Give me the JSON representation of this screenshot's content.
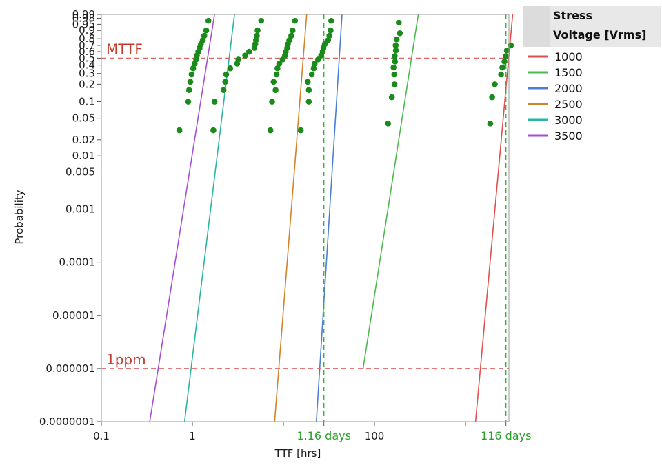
{
  "chart_data": {
    "type": "scatter",
    "title": "",
    "xlabel": "TTF [hrs]",
    "ylabel": "Probability",
    "xscale": "log",
    "yscale": "weibull-probability",
    "xlim": [
      0.1,
      3000
    ],
    "ylim": [
      1e-07,
      0.99
    ],
    "grid": false,
    "x_ticks": [
      "0.1",
      "1",
      "1.16 days",
      "100",
      "116 days"
    ],
    "x_tick_values": [
      0.1,
      1,
      27.84,
      100,
      2784
    ],
    "x_minor_ticks": [
      10,
      1000
    ],
    "y_ticks": [
      "0.0000001",
      "0.000001",
      "0.00001",
      "0.0001",
      "0.001",
      "0.005",
      "0.01",
      "0.02",
      "0.05",
      "0.1",
      "0.2",
      "0.3",
      "0.4",
      "0.5",
      "0.6",
      "0.7",
      "0.8",
      "0.9",
      "0.95",
      "0.98",
      "0.99"
    ],
    "y_tick_values": [
      1e-07,
      1e-06,
      1e-05,
      0.0001,
      0.001,
      0.005,
      0.01,
      0.02,
      0.05,
      0.1,
      0.2,
      0.3,
      0.4,
      0.5,
      0.6,
      0.7,
      0.8,
      0.9,
      0.95,
      0.98,
      0.99
    ],
    "reference_lines": [
      {
        "label": "MTTF",
        "axis": "y",
        "value": 0.5,
        "color": "#e06666",
        "style": "dashed"
      },
      {
        "label": "1ppm",
        "axis": "y",
        "value": 1e-06,
        "color": "#e06666",
        "style": "dashed"
      },
      {
        "label": "1.16 days",
        "axis": "x",
        "value": 27.84,
        "color": "#3cb043",
        "style": "dashed"
      },
      {
        "label": "116 days",
        "axis": "x",
        "value": 2784,
        "color": "#3cb043",
        "style": "dashed"
      }
    ],
    "point_color": "#1a8a1a",
    "legend": {
      "title_line1": "Stress",
      "title_line2": "Voltage [Vrms]",
      "placement": "top-right"
    },
    "series": [
      {
        "name": "1000",
        "color": "#e05050",
        "fit_line": [
          [
            1290,
            1e-07
          ],
          [
            3300,
            0.99
          ]
        ],
        "points": [
          [
            1870,
            0.04
          ],
          [
            1960,
            0.12
          ],
          [
            2100,
            0.2
          ],
          [
            2460,
            0.29
          ],
          [
            2540,
            0.37
          ],
          [
            2680,
            0.45
          ],
          [
            2760,
            0.53
          ],
          [
            2850,
            0.62
          ],
          [
            3150,
            0.7
          ]
        ]
      },
      {
        "name": "1500",
        "color": "#4db84d",
        "fit_line": [
          [
            75,
            1e-06
          ],
          [
            303,
            0.99
          ]
        ],
        "points": [
          [
            141,
            0.04
          ],
          [
            155,
            0.12
          ],
          [
            166,
            0.2
          ],
          [
            165,
            0.29
          ],
          [
            162,
            0.37
          ],
          [
            168,
            0.45
          ],
          [
            167,
            0.53
          ],
          [
            172,
            0.62
          ],
          [
            171,
            0.7
          ],
          [
            175,
            0.79
          ],
          [
            190,
            0.87
          ],
          [
            185,
            0.96
          ]
        ]
      },
      {
        "name": "2000",
        "color": "#4a7fd6",
        "fit_line": [
          [
            23,
            1e-07
          ],
          [
            44,
            0.99
          ]
        ],
        "points": [
          [
            15.5,
            0.03
          ],
          [
            19,
            0.1
          ],
          [
            19,
            0.16
          ],
          [
            18.5,
            0.22
          ],
          [
            20.5,
            0.29
          ],
          [
            21.5,
            0.36
          ],
          [
            22,
            0.42
          ],
          [
            24,
            0.48
          ],
          [
            26,
            0.54
          ],
          [
            27,
            0.6
          ],
          [
            27.5,
            0.66
          ],
          [
            28.5,
            0.72
          ],
          [
            31,
            0.78
          ],
          [
            32,
            0.84
          ],
          [
            33,
            0.9
          ],
          [
            33.5,
            0.97
          ]
        ]
      },
      {
        "name": "2500",
        "color": "#d4822a",
        "fit_line": [
          [
            8,
            1e-07
          ],
          [
            18,
            0.99
          ]
        ],
        "points": [
          [
            7.2,
            0.03
          ],
          [
            7.5,
            0.1
          ],
          [
            8.2,
            0.16
          ],
          [
            7.8,
            0.22
          ],
          [
            8.4,
            0.29
          ],
          [
            8.6,
            0.36
          ],
          [
            9,
            0.42
          ],
          [
            9.8,
            0.48
          ],
          [
            10.4,
            0.54
          ],
          [
            10.6,
            0.6
          ],
          [
            11,
            0.66
          ],
          [
            11.2,
            0.72
          ],
          [
            11.6,
            0.78
          ],
          [
            12.2,
            0.84
          ],
          [
            12.6,
            0.9
          ],
          [
            13.4,
            0.97
          ]
        ]
      },
      {
        "name": "3000",
        "color": "#2ab5a0",
        "fit_line": [
          [
            0.82,
            1e-07
          ],
          [
            2.9,
            0.99
          ]
        ],
        "points": [
          [
            1.7,
            0.03
          ],
          [
            1.75,
            0.1
          ],
          [
            2.2,
            0.16
          ],
          [
            2.3,
            0.22
          ],
          [
            2.35,
            0.29
          ],
          [
            2.6,
            0.36
          ],
          [
            3.1,
            0.42
          ],
          [
            3.2,
            0.48
          ],
          [
            3.8,
            0.54
          ],
          [
            4.2,
            0.6
          ],
          [
            4.8,
            0.66
          ],
          [
            4.9,
            0.72
          ],
          [
            5,
            0.78
          ],
          [
            5.1,
            0.84
          ],
          [
            5.2,
            0.9
          ],
          [
            5.7,
            0.97
          ]
        ]
      },
      {
        "name": "3500",
        "color": "#a64ed8",
        "fit_line": [
          [
            0.34,
            1e-07
          ],
          [
            1.75,
            0.99
          ]
        ],
        "points": [
          [
            0.72,
            0.03
          ],
          [
            0.9,
            0.1
          ],
          [
            0.92,
            0.16
          ],
          [
            0.95,
            0.22
          ],
          [
            0.98,
            0.29
          ],
          [
            1.02,
            0.36
          ],
          [
            1.06,
            0.42
          ],
          [
            1.1,
            0.48
          ],
          [
            1.12,
            0.54
          ],
          [
            1.16,
            0.6
          ],
          [
            1.2,
            0.66
          ],
          [
            1.24,
            0.72
          ],
          [
            1.3,
            0.78
          ],
          [
            1.35,
            0.84
          ],
          [
            1.42,
            0.9
          ],
          [
            1.5,
            0.97
          ]
        ]
      }
    ]
  }
}
